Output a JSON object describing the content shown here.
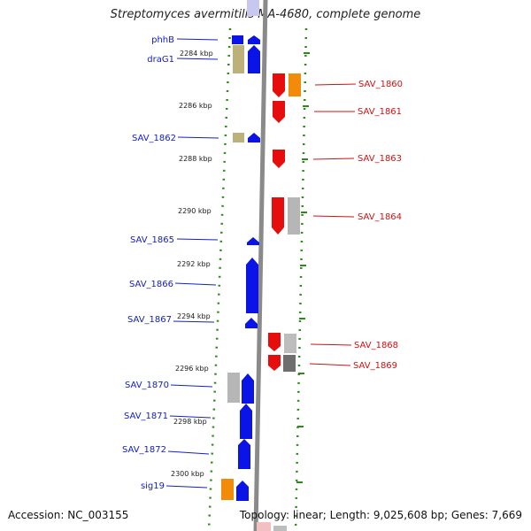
{
  "title": "Streptomyces avermitilis MA-4680, complete genome",
  "footer": {
    "accession": "Accession: NC_003155",
    "topology": "Topology: linear; Length: 9,025,608 bp; Genes: 7,669"
  },
  "ticks": [
    "2284 kbp",
    "2286 kbp",
    "2288 kbp",
    "2290 kbp",
    "2292 kbp",
    "2294 kbp",
    "2296 kbp",
    "2298 kbp",
    "2300 kbp"
  ],
  "left_labels": [
    "phhB",
    "draG1",
    "SAV_1862",
    "SAV_1865",
    "SAV_1866",
    "SAV_1867",
    "SAV_1870",
    "SAV_1871",
    "SAV_1872",
    "sig19"
  ],
  "right_labels": [
    "SAV_1860",
    "SAV_1861",
    "SAV_1863",
    "SAV_1864",
    "SAV_1868",
    "SAV_1869"
  ],
  "colors": {
    "forward_gene": "#0a14e6",
    "reverse_gene": "#e60d0d",
    "forward_label": "#1420c8",
    "reverse_label": "#d41010",
    "dots": "#2a8a1a",
    "axis": "#8a8a8a"
  }
}
